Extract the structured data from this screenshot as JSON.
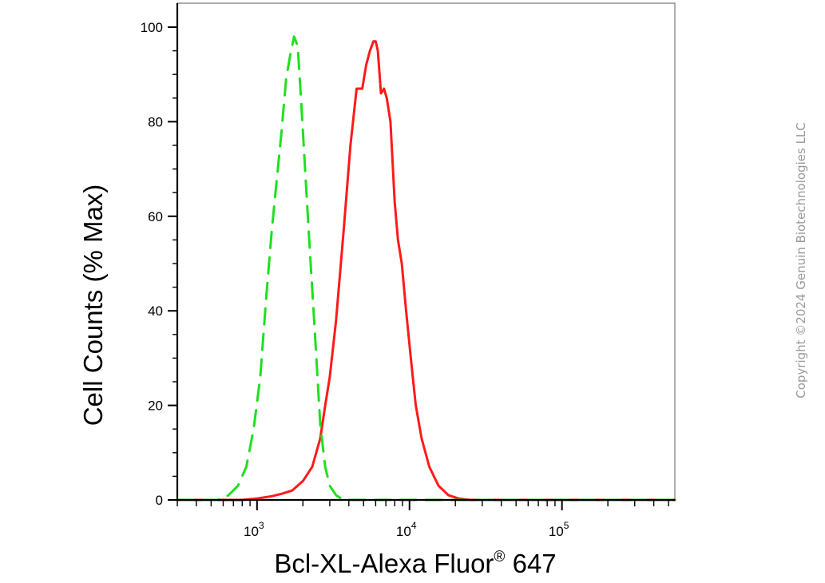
{
  "watermark": "Copyright ©2024 Genuin Biotechnologies LLC",
  "chart_data": {
    "type": "line",
    "title": "",
    "xlabel": {
      "main": "Bcl-XL-Alexa Fluor",
      "sup": "®",
      "tail": " 647"
    },
    "ylabel": "Cell Counts (% Max)",
    "x_scale": "log",
    "xlim": [
      300,
      550000
    ],
    "ylim": [
      0,
      105
    ],
    "x_ticks": [
      {
        "value": 1000,
        "base": "10",
        "exp": "3"
      },
      {
        "value": 10000,
        "base": "10",
        "exp": "4"
      },
      {
        "value": 100000,
        "base": "10",
        "exp": "5"
      }
    ],
    "y_ticks": [
      {
        "value": 0,
        "label": "0"
      },
      {
        "value": 20,
        "label": "20"
      },
      {
        "value": 40,
        "label": "40"
      },
      {
        "value": 60,
        "label": "60"
      },
      {
        "value": 80,
        "label": "80"
      },
      {
        "value": 100,
        "label": "100"
      }
    ],
    "grid": false,
    "legend": "none",
    "series": [
      {
        "color": "#ff1a1a",
        "style": "solid",
        "x": [
          300,
          800,
          1000,
          1250,
          1450,
          1700,
          2000,
          2300,
          2600,
          2800,
          3000,
          3300,
          3700,
          4100,
          4500,
          4900,
          5200,
          5500,
          5800,
          6000,
          6200,
          6500,
          6800,
          7100,
          7500,
          8000,
          8400,
          8900,
          9500,
          10200,
          11000,
          12000,
          13500,
          15500,
          18000,
          21000,
          25000,
          30000,
          550000
        ],
        "y": [
          0,
          0,
          0.3,
          0.8,
          1.3,
          2,
          4,
          7,
          13,
          20,
          26,
          38,
          57,
          75,
          87,
          87,
          92,
          95,
          97,
          97,
          95,
          86,
          87,
          85,
          80,
          63,
          55,
          50,
          40,
          30,
          20,
          13,
          7,
          3,
          1,
          0.3,
          0,
          0,
          0
        ]
      },
      {
        "color": "#1fe01f",
        "style": "dashed",
        "x": [
          300,
          550,
          650,
          750,
          850,
          950,
          1050,
          1150,
          1250,
          1350,
          1450,
          1550,
          1650,
          1750,
          1850,
          1950,
          2050,
          2200,
          2400,
          2600,
          2800,
          3000,
          3300,
          3700,
          4200,
          550000
        ],
        "y": [
          0,
          0,
          1,
          3,
          7,
          15,
          26,
          43,
          57,
          68,
          78,
          89,
          94,
          98,
          96,
          84,
          72,
          55,
          35,
          16,
          7,
          3,
          1,
          0,
          0,
          0
        ]
      }
    ]
  }
}
